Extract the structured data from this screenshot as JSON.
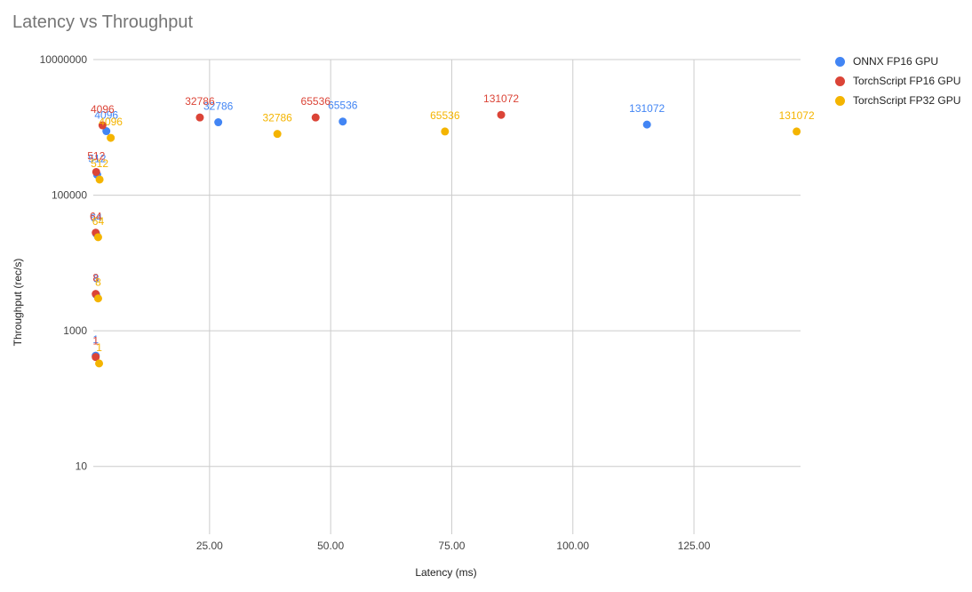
{
  "chart_data": {
    "type": "scatter",
    "title": "Latency vs Throughput",
    "xlabel": "Latency (ms)",
    "ylabel": "Throughput (rec/s)",
    "x_scale": "linear",
    "y_scale": "log",
    "xlim": [
      1,
      147
    ],
    "ylim": [
      1,
      10000000
    ],
    "x_ticks": [
      25,
      50,
      75,
      100,
      125
    ],
    "x_tick_labels": [
      "25.00",
      "50.00",
      "75.00",
      "100.00",
      "125.00"
    ],
    "y_ticks": [
      10,
      1000,
      100000,
      10000000
    ],
    "y_tick_labels": [
      "10",
      "1000",
      "100000",
      "10000000"
    ],
    "grid": true,
    "legend_position": "right",
    "series": [
      {
        "name": "ONNX FP16 GPU",
        "color": "#4285f4",
        "points": [
          {
            "x": 1.5,
            "y": 430,
            "label": "1"
          },
          {
            "x": 1.6,
            "y": 3400,
            "label": "8"
          },
          {
            "x": 1.6,
            "y": 27000,
            "label": "64"
          },
          {
            "x": 1.8,
            "y": 200000,
            "label": "512"
          },
          {
            "x": 3.7,
            "y": 880000,
            "label": "4096"
          },
          {
            "x": 26.8,
            "y": 1190000,
            "label": "32786"
          },
          {
            "x": 52.5,
            "y": 1220000,
            "label": "65536"
          },
          {
            "x": 115.3,
            "y": 1100000,
            "label": "131072"
          }
        ]
      },
      {
        "name": "TorchScript FP16 GPU",
        "color": "#db4437",
        "points": [
          {
            "x": 1.5,
            "y": 410,
            "label": "1"
          },
          {
            "x": 1.5,
            "y": 3500,
            "label": "8"
          },
          {
            "x": 1.5,
            "y": 28000,
            "label": "64"
          },
          {
            "x": 1.6,
            "y": 220000,
            "label": "512"
          },
          {
            "x": 2.9,
            "y": 1070000,
            "label": "4096"
          },
          {
            "x": 23.0,
            "y": 1400000,
            "label": "32786"
          },
          {
            "x": 46.9,
            "y": 1400000,
            "label": "65536"
          },
          {
            "x": 85.2,
            "y": 1530000,
            "label": "131072"
          }
        ]
      },
      {
        "name": "TorchScript FP32 GPU",
        "color": "#f4b400",
        "points": [
          {
            "x": 2.2,
            "y": 330,
            "label": "1"
          },
          {
            "x": 2.0,
            "y": 3000,
            "label": "8"
          },
          {
            "x": 2.0,
            "y": 24000,
            "label": "64"
          },
          {
            "x": 2.3,
            "y": 170000,
            "label": "512"
          },
          {
            "x": 4.6,
            "y": 700000,
            "label": "4096"
          },
          {
            "x": 39.0,
            "y": 800000,
            "label": "32786"
          },
          {
            "x": 73.6,
            "y": 870000,
            "label": "65536"
          },
          {
            "x": 146.2,
            "y": 870000,
            "label": "131072"
          }
        ]
      }
    ]
  }
}
